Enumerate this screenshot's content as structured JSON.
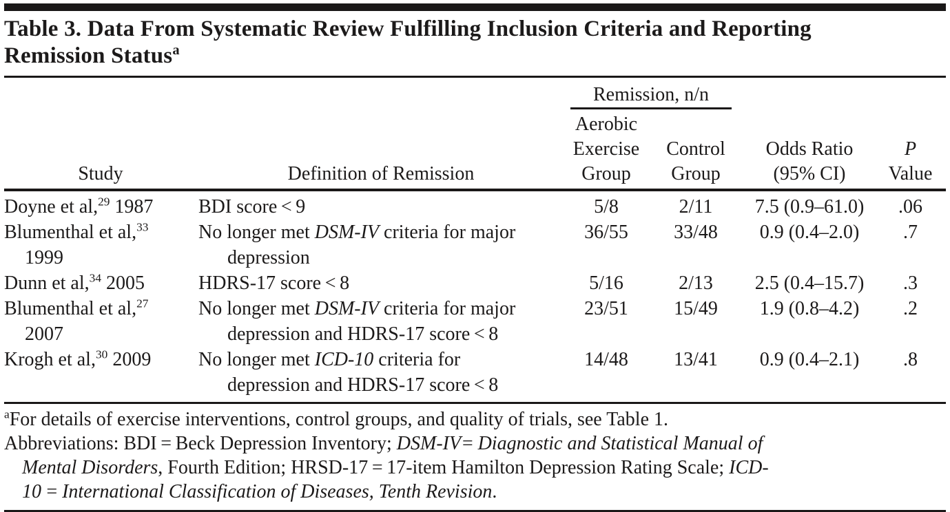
{
  "title": {
    "segments": [
      {
        "t": "Table 3. Data From Systematic Review Fulfilling Inclusion Criteria and Reporting"
      },
      {
        "br": true
      },
      {
        "t": "Remission Status"
      },
      {
        "t": "a",
        "sup": true
      }
    ]
  },
  "table": {
    "spanner_label": "Remission, n/n",
    "columns": {
      "study": "Study",
      "definition": "Definition of Remission",
      "aerobic": [
        "Aerobic",
        "Exercise",
        "Group"
      ],
      "control": [
        "Control",
        "Group"
      ],
      "odds": [
        "Odds Ratio",
        "(95% CI)"
      ],
      "p": [
        "P",
        "Value"
      ]
    },
    "rows": [
      {
        "study": [
          {
            "t": "Doyne et al,"
          },
          {
            "t": "29",
            "sup": true
          },
          {
            "t": " 1987"
          }
        ],
        "definition": [
          {
            "t": "BDI score < 9"
          }
        ],
        "aerobic": "5/8",
        "control": "2/11",
        "odds": "7.5 (0.9–61.0)",
        "p": ".06"
      },
      {
        "study": [
          {
            "t": "Blumenthal et al,"
          },
          {
            "t": "33",
            "sup": true
          },
          {
            "br": true
          },
          {
            "t": "1999"
          }
        ],
        "definition": [
          {
            "t": "No longer met "
          },
          {
            "t": "DSM-IV",
            "it": true
          },
          {
            "t": " criteria for major"
          },
          {
            "br": true
          },
          {
            "t": "depression"
          }
        ],
        "aerobic": "36/55",
        "control": "33/48",
        "odds": "0.9 (0.4–2.0)",
        "p": ".7"
      },
      {
        "study": [
          {
            "t": "Dunn et al,"
          },
          {
            "t": "34",
            "sup": true
          },
          {
            "t": " 2005"
          }
        ],
        "definition": [
          {
            "t": "HDRS-17 score < 8"
          }
        ],
        "aerobic": "5/16",
        "control": "2/13",
        "odds": "2.5 (0.4–15.7)",
        "p": ".3"
      },
      {
        "study": [
          {
            "t": "Blumenthal et al,"
          },
          {
            "t": "27",
            "sup": true
          },
          {
            "br": true
          },
          {
            "t": "2007"
          }
        ],
        "definition": [
          {
            "t": "No longer met "
          },
          {
            "t": "DSM-IV",
            "it": true
          },
          {
            "t": " criteria for major"
          },
          {
            "br": true
          },
          {
            "t": "depression and HDRS-17 score < 8"
          }
        ],
        "aerobic": "23/51",
        "control": "15/49",
        "odds": "1.9 (0.8–4.2)",
        "p": ".2"
      },
      {
        "study": [
          {
            "t": "Krogh et al,"
          },
          {
            "t": "30",
            "sup": true
          },
          {
            "t": " 2009"
          }
        ],
        "definition": [
          {
            "t": "No longer met "
          },
          {
            "t": "ICD-10",
            "it": true
          },
          {
            "t": " criteria for"
          },
          {
            "br": true
          },
          {
            "t": "depression and HDRS-17 score < 8"
          }
        ],
        "aerobic": "14/48",
        "control": "13/41",
        "odds": "0.9 (0.4–2.1)",
        "p": ".8"
      }
    ]
  },
  "footnotes": [
    [
      {
        "t": "a",
        "sup": true
      },
      {
        "t": "For details of exercise interventions, control groups, and quality of trials, see Table 1."
      }
    ],
    [
      {
        "t": "Abbreviations: BDI = Beck Depression Inventory; "
      },
      {
        "t": "DSM-IV= Diagnostic and Statistical Manual of",
        "it": true
      },
      {
        "br": true
      },
      {
        "t": "Mental Disorders",
        "it": true
      },
      {
        "t": ", Fourth Edition; HRSD-17 = 17-item Hamilton Depression Rating Scale; "
      },
      {
        "t": "ICD-",
        "it": true
      },
      {
        "br": true
      },
      {
        "t": "10 = International Classification of Diseases, Tenth Revision",
        "it": true
      },
      {
        "t": "."
      }
    ]
  ]
}
